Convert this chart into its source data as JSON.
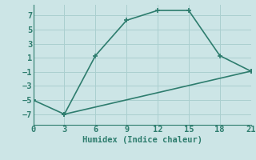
{
  "line1_x": [
    0,
    3,
    6,
    9,
    12,
    15,
    18,
    21
  ],
  "line1_y": [
    -5,
    -7,
    1.3,
    6.3,
    7.7,
    7.7,
    1.3,
    -0.9
  ],
  "line2_x": [
    3,
    21
  ],
  "line2_y": [
    -7,
    -0.9
  ],
  "color": "#2e7d6e",
  "bg_color": "#cce5e6",
  "grid_color": "#aacfcf",
  "xlabel": "Humidex (Indice chaleur)",
  "xlim": [
    0,
    21
  ],
  "ylim": [
    -8.5,
    8.5
  ],
  "xticks": [
    0,
    3,
    6,
    9,
    12,
    15,
    18,
    21
  ],
  "yticks": [
    -7,
    -5,
    -3,
    -1,
    1,
    3,
    5,
    7
  ],
  "marker": "+",
  "markersize": 5,
  "linewidth": 1.2,
  "font_size": 7.5
}
